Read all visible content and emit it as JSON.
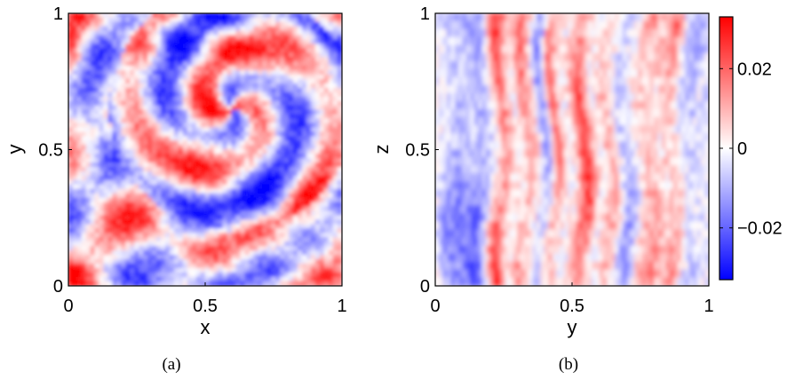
{
  "chart_data": [
    {
      "type": "heatmap",
      "caption": "(a)",
      "xlabel": "x",
      "ylabel": "y",
      "xlim": [
        0,
        1
      ],
      "ylim": [
        0,
        1
      ],
      "xticks": [
        "0",
        "0.5",
        "1"
      ],
      "yticks": [
        "0",
        "0.5",
        "1"
      ],
      "pattern": "large counter-clockwise vortex centered near (0.6, 0.65) with alternating red/blue spiral filaments",
      "colormap": [
        "#0000ff",
        "#ffffff",
        "#ff0000"
      ]
    },
    {
      "type": "heatmap",
      "caption": "(b)",
      "xlabel": "y",
      "ylabel": "z",
      "xlim": [
        0,
        1
      ],
      "ylim": [
        0,
        1
      ],
      "xticks": [
        "0",
        "0.5",
        "1"
      ],
      "yticks": [
        "0",
        "0.5",
        "1"
      ],
      "pattern": "vertically elongated streaks; blue band near y=0.1-0.2, red bands near y=0.2-0.3, 0.5-0.6 and 0.8",
      "colormap": [
        "#0000ff",
        "#ffffff",
        "#ff0000"
      ]
    }
  ],
  "colorbar": {
    "range": [
      -0.033,
      0.033
    ],
    "ticks": [
      {
        "value": 0.02,
        "label": "0.02"
      },
      {
        "value": 0,
        "label": "0"
      },
      {
        "value": -0.02,
        "label": "−0.02"
      }
    ],
    "low_color": "#0000ff",
    "mid_color": "#ffffff",
    "high_color": "#ff0000"
  }
}
